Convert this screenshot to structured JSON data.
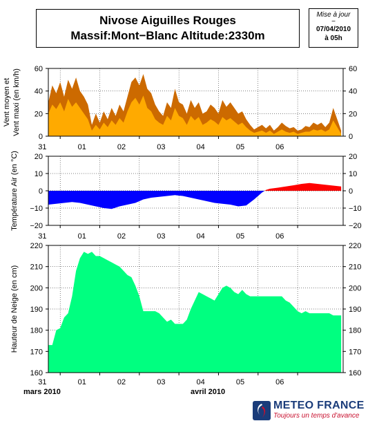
{
  "header": {
    "title_line1": "Nivose Aiguilles Rouges",
    "title_line2": "Massif:Mont−Blanc Altitude:2330m",
    "update_label": "Mise à jour",
    "update_dash": "−",
    "update_date": "07/04/2010",
    "update_time": "à 05h"
  },
  "months": {
    "left": "mars 2010",
    "right": "avril 2010"
  },
  "logo": {
    "name": "METEO FRANCE",
    "tagline": "Toujours un temps d'avance",
    "icon": "meteo-france-logo-icon"
  },
  "colors": {
    "wind_max": "#cc6a00",
    "wind_mean": "#ffaa00",
    "temp_neg": "#0000ff",
    "temp_pos": "#ff0000",
    "snow": "#00ff80"
  },
  "chart_data": [
    {
      "type": "area",
      "name": "wind",
      "ylabel": "Vent moyen et Vent maxi (en km/h)",
      "ylim": [
        0,
        60
      ],
      "yticks": [
        0,
        20,
        40,
        60
      ],
      "xlim": [
        0,
        7.45
      ],
      "xtick_labels": [
        "31",
        "01",
        "02",
        "03",
        "04",
        "05",
        "06"
      ],
      "grid": true,
      "x": [
        0,
        0.1,
        0.2,
        0.3,
        0.4,
        0.5,
        0.6,
        0.7,
        0.8,
        0.9,
        1.0,
        1.1,
        1.2,
        1.3,
        1.4,
        1.5,
        1.6,
        1.7,
        1.8,
        1.9,
        2.0,
        2.1,
        2.2,
        2.3,
        2.4,
        2.5,
        2.6,
        2.7,
        2.8,
        2.9,
        3.0,
        3.1,
        3.2,
        3.3,
        3.4,
        3.5,
        3.6,
        3.7,
        3.8,
        3.9,
        4.0,
        4.1,
        4.2,
        4.3,
        4.4,
        4.5,
        4.6,
        4.7,
        4.8,
        4.9,
        5.0,
        5.1,
        5.2,
        5.3,
        5.4,
        5.5,
        5.6,
        5.7,
        5.8,
        5.9,
        6.0,
        6.1,
        6.2,
        6.3,
        6.4,
        6.5,
        6.6,
        6.7,
        6.8,
        6.9,
        7.0,
        7.1,
        7.2,
        7.3,
        7.4
      ],
      "series": [
        {
          "key": "max",
          "values": [
            30,
            45,
            38,
            48,
            35,
            50,
            42,
            52,
            40,
            35,
            28,
            10,
            20,
            12,
            22,
            15,
            25,
            18,
            28,
            22,
            35,
            48,
            52,
            45,
            55,
            42,
            38,
            28,
            22,
            18,
            30,
            25,
            42,
            30,
            28,
            20,
            32,
            25,
            30,
            20,
            22,
            28,
            25,
            20,
            32,
            26,
            30,
            25,
            20,
            22,
            15,
            10,
            6,
            8,
            10,
            7,
            10,
            5,
            8,
            12,
            9,
            7,
            8,
            5,
            6,
            9,
            8,
            12,
            10,
            12,
            8,
            12,
            25,
            15,
            5
          ]
        },
        {
          "key": "mean",
          "values": [
            20,
            28,
            24,
            30,
            22,
            33,
            26,
            30,
            25,
            20,
            15,
            5,
            10,
            6,
            12,
            8,
            14,
            10,
            16,
            12,
            22,
            30,
            34,
            28,
            36,
            25,
            22,
            15,
            12,
            10,
            18,
            14,
            25,
            18,
            16,
            10,
            18,
            14,
            17,
            10,
            12,
            15,
            13,
            10,
            17,
            14,
            16,
            13,
            10,
            12,
            8,
            5,
            3,
            4,
            5,
            3,
            5,
            2,
            4,
            6,
            4,
            3,
            4,
            2,
            3,
            4,
            4,
            6,
            5,
            6,
            4,
            6,
            14,
            8,
            2
          ]
        }
      ]
    },
    {
      "type": "area",
      "name": "temperature",
      "ylabel": "Température Air (en °C)",
      "ylim": [
        -20,
        20
      ],
      "yticks": [
        -20,
        -10,
        0,
        10,
        20
      ],
      "xlim": [
        0,
        7.45
      ],
      "xtick_labels": [
        "31",
        "01",
        "02",
        "03",
        "04",
        "05",
        "06"
      ],
      "grid": true,
      "x": [
        0,
        0.2,
        0.4,
        0.6,
        0.8,
        1.0,
        1.2,
        1.4,
        1.6,
        1.8,
        2.0,
        2.2,
        2.4,
        2.6,
        2.8,
        3.0,
        3.2,
        3.4,
        3.6,
        3.8,
        4.0,
        4.2,
        4.4,
        4.6,
        4.8,
        5.0,
        5.2,
        5.4,
        5.5,
        5.6,
        5.8,
        6.0,
        6.2,
        6.4,
        6.6,
        6.8,
        7.0,
        7.2,
        7.4
      ],
      "series": [
        {
          "key": "temperature",
          "values": [
            -8,
            -7.5,
            -7,
            -6.5,
            -7,
            -8,
            -9,
            -10,
            -10.5,
            -9,
            -8,
            -7,
            -5,
            -4,
            -3.5,
            -3,
            -2.5,
            -3,
            -4,
            -5,
            -6,
            -7,
            -7.5,
            -8,
            -9,
            -8.5,
            -5,
            -1,
            0.5,
            1.2,
            1.8,
            2.5,
            3.2,
            4,
            4.5,
            4,
            3.5,
            3,
            2.5
          ]
        }
      ]
    },
    {
      "type": "area",
      "name": "snow",
      "ylabel": "Hauteur de Neige (en cm)",
      "ylim": [
        160,
        220
      ],
      "yticks": [
        160,
        170,
        180,
        190,
        200,
        210,
        220
      ],
      "xlim": [
        0,
        7.45
      ],
      "xtick_labels": [
        "31",
        "01",
        "02",
        "03",
        "04",
        "05",
        "06"
      ],
      "grid": true,
      "x": [
        0,
        0.1,
        0.2,
        0.3,
        0.4,
        0.5,
        0.6,
        0.7,
        0.8,
        0.9,
        1.0,
        1.1,
        1.2,
        1.3,
        1.4,
        1.5,
        1.6,
        1.7,
        1.8,
        1.9,
        2.0,
        2.1,
        2.2,
        2.3,
        2.4,
        2.5,
        2.6,
        2.7,
        2.8,
        2.9,
        3.0,
        3.1,
        3.2,
        3.3,
        3.4,
        3.5,
        3.6,
        3.7,
        3.8,
        3.9,
        4.0,
        4.1,
        4.2,
        4.3,
        4.4,
        4.5,
        4.6,
        4.7,
        4.8,
        4.9,
        5.0,
        5.1,
        5.2,
        5.3,
        5.4,
        5.5,
        5.6,
        5.7,
        5.8,
        5.9,
        6.0,
        6.1,
        6.2,
        6.3,
        6.4,
        6.5,
        6.6,
        6.7,
        6.8,
        6.9,
        7.0,
        7.1,
        7.2,
        7.3,
        7.4
      ],
      "series": [
        {
          "key": "snow_depth",
          "values": [
            173,
            173,
            180,
            181,
            186,
            188,
            196,
            208,
            214,
            217,
            216,
            217,
            215,
            215,
            214,
            213,
            212,
            211,
            210,
            208,
            206,
            205,
            201,
            196,
            189,
            189,
            189,
            189,
            188,
            186,
            184,
            185,
            183,
            183,
            183,
            185,
            190,
            194,
            198,
            197,
            196,
            195,
            194,
            197,
            200,
            201,
            200,
            198,
            197,
            199,
            197,
            196,
            196,
            196,
            196,
            196,
            196,
            196,
            196,
            196,
            194,
            193,
            191,
            189,
            188,
            189,
            188,
            188,
            188,
            188,
            188,
            188,
            187,
            187,
            187
          ]
        }
      ]
    }
  ]
}
